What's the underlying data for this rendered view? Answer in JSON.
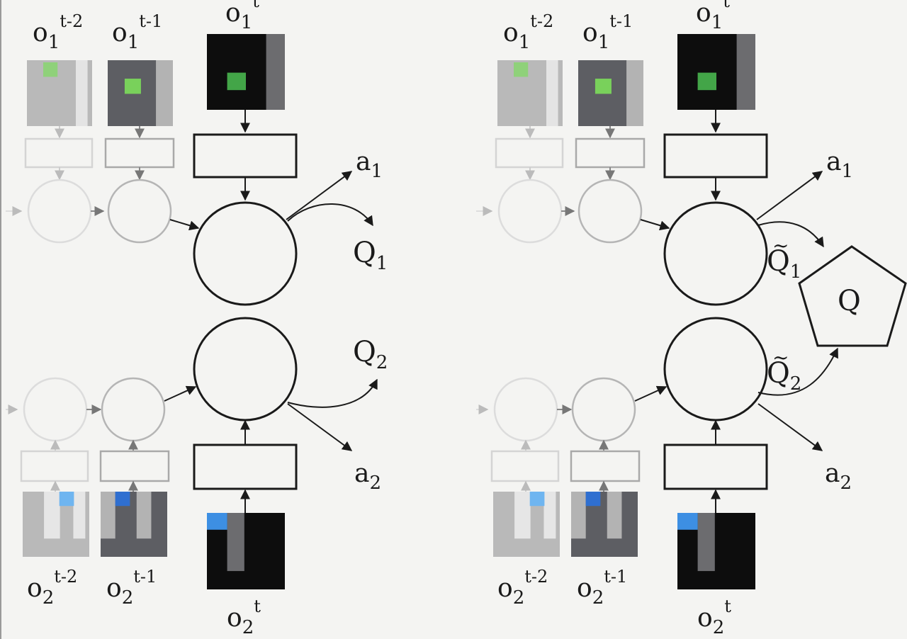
{
  "colors": {
    "background": "#f4f4f2",
    "green_patch": "#43a548",
    "blue_patch": "#3d8fe3",
    "frame_black": "#0d0d0d",
    "frame_dark_gray": "#5b5c60",
    "frame_light_gray": "#b8b8b8"
  },
  "panels": [
    {
      "name": "left",
      "agent1": {
        "obs_base": "o",
        "obs_sub": "1",
        "obs_sups": [
          "t-2",
          "t-1",
          "t"
        ],
        "action_base": "a",
        "action_sub": "1",
        "q_base": "Q",
        "q_sub": "1",
        "q_tilde": false
      },
      "agent2": {
        "obs_base": "o",
        "obs_sub": "2",
        "obs_sups": [
          "t-2",
          "t-1",
          "t"
        ],
        "action_base": "a",
        "action_sub": "2",
        "q_base": "Q",
        "q_sub": "2",
        "q_tilde": false
      },
      "mixer": null
    },
    {
      "name": "right",
      "agent1": {
        "obs_base": "o",
        "obs_sub": "1",
        "obs_sups": [
          "t-2",
          "t-1",
          "t"
        ],
        "action_base": "a",
        "action_sub": "1",
        "q_base": "Q",
        "q_sub": "1",
        "q_tilde": true
      },
      "agent2": {
        "obs_base": "o",
        "obs_sub": "2",
        "obs_sups": [
          "t-2",
          "t-1",
          "t"
        ],
        "action_base": "a",
        "action_sub": "2",
        "q_base": "Q",
        "q_sub": "2",
        "q_tilde": true
      },
      "mixer": {
        "label": "Q",
        "shape": "pentagon"
      }
    }
  ]
}
